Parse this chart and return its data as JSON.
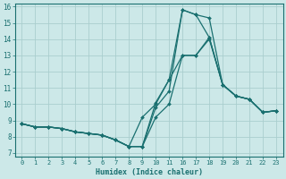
{
  "xlabel": "Humidex (Indice chaleur)",
  "background_color": "#cce8e8",
  "grid_color": "#aacece",
  "line_color": "#1a7070",
  "xlim": [
    -0.5,
    19.5
  ],
  "ylim": [
    6.8,
    16.2
  ],
  "yticks": [
    7,
    8,
    9,
    10,
    11,
    12,
    13,
    14,
    15,
    16
  ],
  "xtick_positions": [
    0,
    1,
    2,
    3,
    4,
    5,
    6,
    7,
    8,
    9,
    10,
    11,
    12,
    13,
    14,
    15,
    16,
    17,
    18,
    19
  ],
  "xtick_labels": [
    "0",
    "1",
    "2",
    "3",
    "4",
    "5",
    "6",
    "7",
    "8",
    "9",
    "10",
    "11",
    "16",
    "17",
    "18",
    "19",
    "20",
    "21",
    "22",
    "23"
  ],
  "series": [
    {
      "x": [
        0,
        1,
        2,
        3,
        4,
        5,
        6,
        7,
        8,
        9,
        10,
        11,
        12,
        13,
        14,
        15,
        16,
        17,
        18,
        19
      ],
      "y": [
        8.8,
        8.6,
        8.6,
        8.5,
        8.3,
        8.2,
        8.1,
        7.8,
        7.4,
        7.4,
        9.2,
        10.0,
        13.0,
        13.0,
        14.0,
        11.2,
        10.5,
        10.3,
        9.5,
        9.6
      ]
    },
    {
      "x": [
        0,
        1,
        2,
        3,
        4,
        5,
        6,
        7,
        8,
        9,
        10,
        11,
        12,
        13,
        14,
        15,
        16,
        17,
        18,
        19
      ],
      "y": [
        8.8,
        8.6,
        8.6,
        8.5,
        8.3,
        8.2,
        8.1,
        7.8,
        7.4,
        7.4,
        10.1,
        11.5,
        15.8,
        15.5,
        15.3,
        11.2,
        10.5,
        10.3,
        9.5,
        9.6
      ]
    },
    {
      "x": [
        0,
        1,
        2,
        3,
        4,
        5,
        6,
        7,
        8,
        9,
        10,
        11,
        12,
        13,
        14,
        15,
        16,
        17,
        18,
        19
      ],
      "y": [
        8.8,
        8.6,
        8.6,
        8.5,
        8.3,
        8.2,
        8.1,
        7.8,
        7.4,
        7.4,
        9.8,
        10.8,
        15.8,
        15.5,
        14.1,
        11.2,
        10.5,
        10.3,
        9.5,
        9.6
      ]
    },
    {
      "x": [
        0,
        1,
        2,
        3,
        4,
        5,
        6,
        7,
        8,
        9,
        10,
        11,
        12,
        13,
        14,
        15,
        16,
        17,
        18,
        19
      ],
      "y": [
        8.8,
        8.6,
        8.6,
        8.5,
        8.3,
        8.2,
        8.1,
        7.8,
        7.4,
        9.2,
        10.0,
        11.5,
        13.0,
        13.0,
        14.1,
        11.2,
        10.5,
        10.3,
        9.5,
        9.6
      ]
    }
  ]
}
